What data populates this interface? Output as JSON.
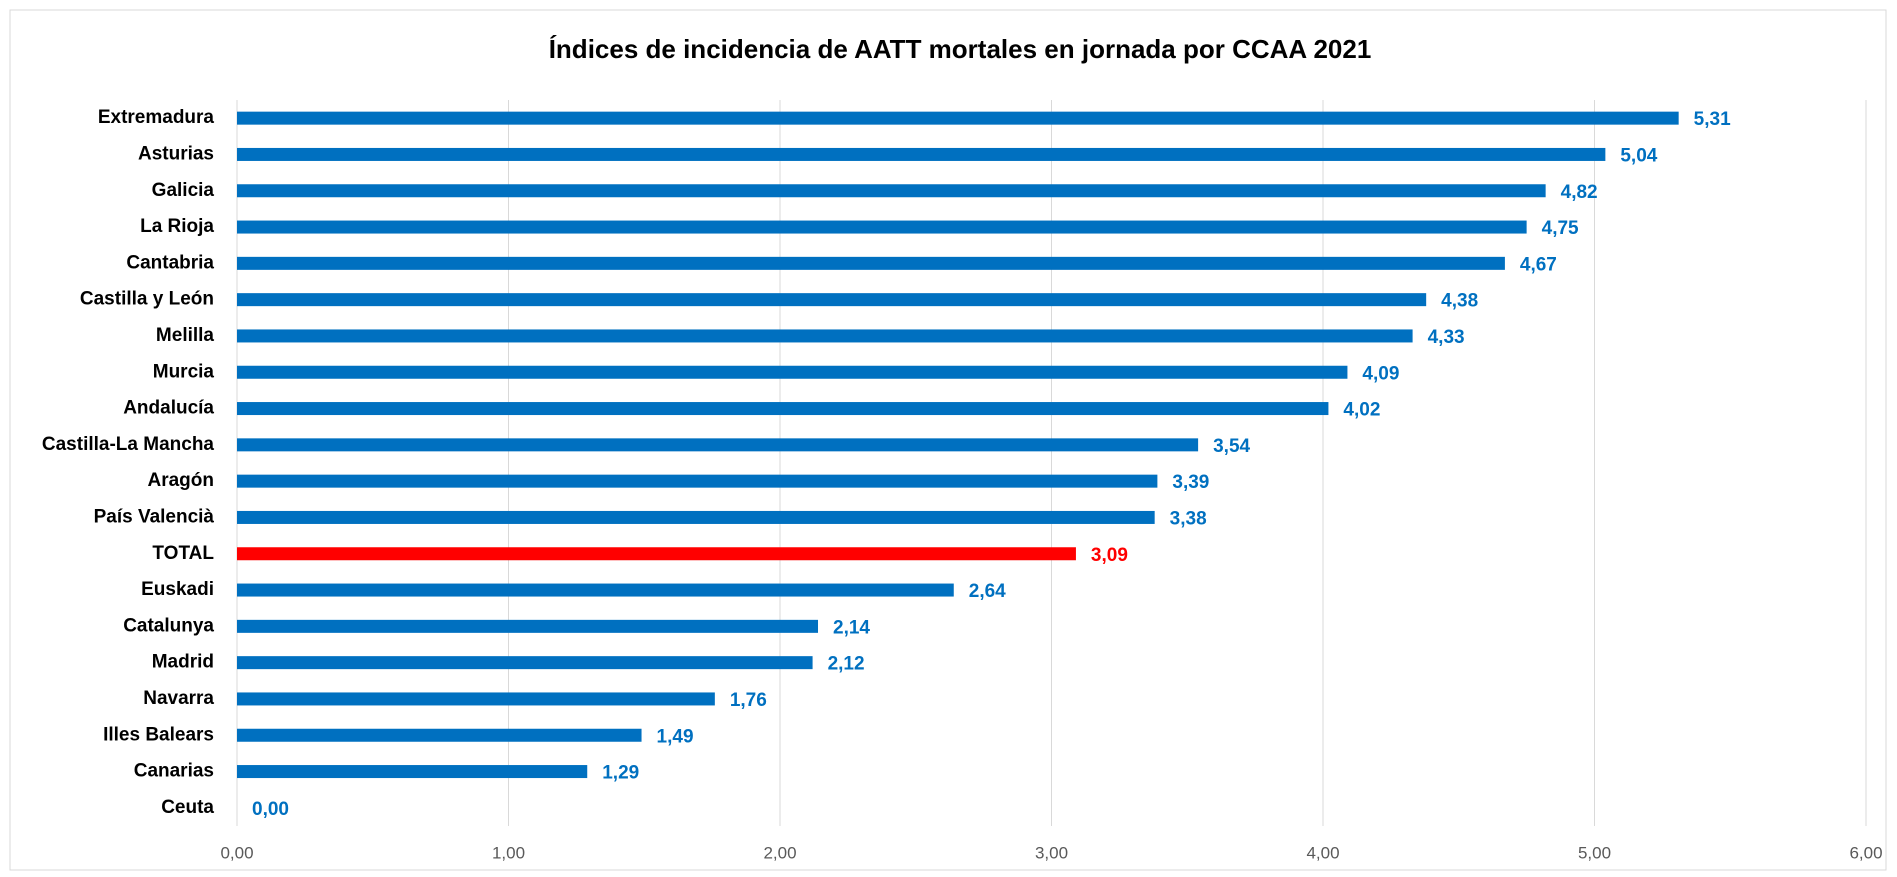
{
  "chart_data": {
    "type": "hbar",
    "title": "Índices de incidencia de AATT mortales en jornada por CCAA 2021",
    "categories": [
      "Extremadura",
      "Asturias",
      "Galicia",
      "La Rioja",
      "Cantabria",
      "Castilla y León",
      "Melilla",
      "Murcia",
      "Andalucía",
      "Castilla-La Mancha",
      "Aragón",
      "País Valencià",
      "TOTAL",
      "Euskadi",
      "Catalunya",
      "Madrid",
      "Navarra",
      "Illes Balears",
      "Canarias",
      "Ceuta"
    ],
    "values": [
      5.31,
      5.04,
      4.82,
      4.75,
      4.67,
      4.38,
      4.33,
      4.09,
      4.02,
      3.54,
      3.39,
      3.38,
      3.09,
      2.64,
      2.14,
      2.12,
      1.76,
      1.49,
      1.29,
      0.0
    ],
    "value_labels": [
      "5,31",
      "5,04",
      "4,82",
      "4,75",
      "4,67",
      "4,38",
      "4,33",
      "4,09",
      "4,02",
      "3,54",
      "3,39",
      "3,38",
      "3,09",
      "2,64",
      "2,14",
      "2,12",
      "1,76",
      "1,49",
      "1,29",
      "0,00"
    ],
    "colors": [
      "#0070c0",
      "#0070c0",
      "#0070c0",
      "#0070c0",
      "#0070c0",
      "#0070c0",
      "#0070c0",
      "#0070c0",
      "#0070c0",
      "#0070c0",
      "#0070c0",
      "#0070c0",
      "#ff0000",
      "#0070c0",
      "#0070c0",
      "#0070c0",
      "#0070c0",
      "#0070c0",
      "#0070c0",
      "#0070c0"
    ],
    "xlim": [
      0,
      6
    ],
    "xticks": [
      {
        "value": 0,
        "label": "0,00"
      },
      {
        "value": 1,
        "label": "1,00"
      },
      {
        "value": 2,
        "label": "2,00"
      },
      {
        "value": 3,
        "label": "3,00"
      },
      {
        "value": 4,
        "label": "4,00"
      },
      {
        "value": 5,
        "label": "5,00"
      },
      {
        "value": 6,
        "label": "6,00"
      }
    ],
    "grid": true
  }
}
